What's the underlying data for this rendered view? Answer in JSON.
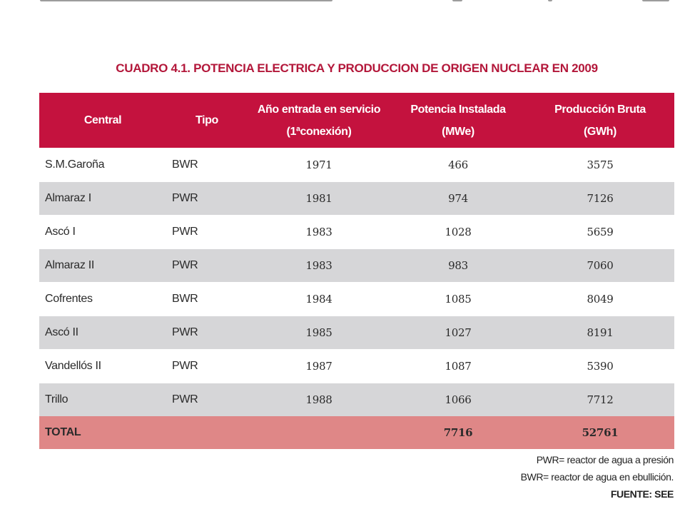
{
  "table": {
    "title": "CUADRO 4.1.  POTENCIA ELECTRICA Y PRODUCCION DE ORIGEN NUCLEAR EN 2009",
    "headers": {
      "central": "Central",
      "tipo": "Tipo",
      "anio_line1": "Año entrada en servicio",
      "anio_line2": "(1ªconexión)",
      "potencia_line1": "Potencia Instalada",
      "potencia_line2": "(MWe)",
      "produccion_line1": "Producción Bruta",
      "produccion_line2": "(GWh)"
    },
    "rows": [
      {
        "central": "S.M.Garoña",
        "tipo": "BWR",
        "anio": "1971",
        "potencia": "466",
        "produccion": "3575"
      },
      {
        "central": "Almaraz I",
        "tipo": "PWR",
        "anio": "1981",
        "potencia": "974",
        "produccion": "7126"
      },
      {
        "central": "Ascó I",
        "tipo": "PWR",
        "anio": "1983",
        "potencia": "1028",
        "produccion": "5659"
      },
      {
        "central": "Almaraz II",
        "tipo": "PWR",
        "anio": "1983",
        "potencia": "983",
        "produccion": "7060"
      },
      {
        "central": "Cofrentes",
        "tipo": "BWR",
        "anio": "1984",
        "potencia": "1085",
        "produccion": "8049"
      },
      {
        "central": "Ascó II",
        "tipo": "PWR",
        "anio": "1985",
        "potencia": "1027",
        "produccion": "8191"
      },
      {
        "central": "Vandellós II",
        "tipo": "PWR",
        "anio": "1987",
        "potencia": "1087",
        "produccion": "5390"
      },
      {
        "central": "Trillo",
        "tipo": "PWR",
        "anio": "1988",
        "potencia": "1066",
        "produccion": "7712"
      }
    ],
    "total": {
      "label": "TOTAL",
      "potencia": "7716",
      "produccion": "52761"
    }
  },
  "notes": {
    "pwr": "PWR= reactor de agua a presión",
    "bwr": "BWR= reactor de agua en ebullición.",
    "source": "FUENTE: SEE"
  },
  "colors": {
    "header_bg": "#c4123e",
    "title": "#b3173a",
    "stripe": "#d6d6d8",
    "total_bg": "#df8787"
  }
}
